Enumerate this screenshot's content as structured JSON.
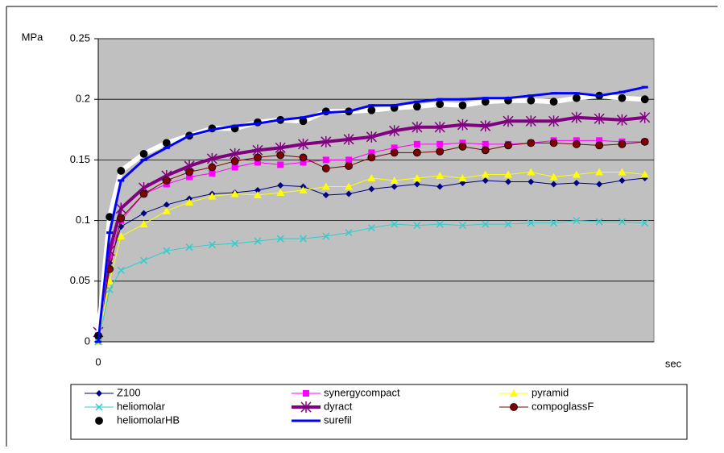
{
  "chart_data": {
    "type": "line",
    "y_label": "MPa",
    "x_label": "sec",
    "x": [
      0,
      5,
      10,
      20,
      30,
      40,
      50,
      60,
      70,
      80,
      90,
      100,
      110,
      120,
      130,
      140,
      150,
      160,
      170,
      180,
      190,
      200,
      210,
      220,
      230,
      240
    ],
    "xlim": [
      0,
      244
    ],
    "xticks": [
      0
    ],
    "ylim": [
      0,
      0.25
    ],
    "yticks": [
      0,
      0.05,
      0.1,
      0.15,
      0.2,
      0.25
    ],
    "grid": true,
    "background": "#c0c0c0",
    "series": [
      {
        "name": "Z100",
        "color": "#000080",
        "marker": "diamond",
        "line_width": 1,
        "values": [
          0,
          0.065,
          0.095,
          0.106,
          0.113,
          0.118,
          0.122,
          0.123,
          0.125,
          0.129,
          0.128,
          0.121,
          0.122,
          0.126,
          0.128,
          0.13,
          0.128,
          0.131,
          0.133,
          0.132,
          0.132,
          0.13,
          0.131,
          0.13,
          0.133,
          0.135
        ]
      },
      {
        "name": "synergycompact",
        "color": "#ff00ff",
        "marker": "square",
        "line_width": 1,
        "values": [
          0.005,
          0.07,
          0.1,
          0.122,
          0.13,
          0.136,
          0.139,
          0.144,
          0.148,
          0.146,
          0.148,
          0.15,
          0.15,
          0.156,
          0.16,
          0.163,
          0.163,
          0.164,
          0.163,
          0.163,
          0.164,
          0.166,
          0.166,
          0.166,
          0.165,
          0.165
        ]
      },
      {
        "name": "pyramid",
        "color": "#ffff00",
        "marker": "triangle",
        "line_width": 1,
        "values": [
          0,
          0.05,
          0.087,
          0.097,
          0.108,
          0.115,
          0.12,
          0.122,
          0.121,
          0.123,
          0.125,
          0.128,
          0.128,
          0.135,
          0.133,
          0.135,
          0.137,
          0.135,
          0.138,
          0.138,
          0.14,
          0.136,
          0.138,
          0.14,
          0.14,
          0.138
        ]
      },
      {
        "name": "heliomolar",
        "color": "#33cccc",
        "marker": "x",
        "line_width": 1,
        "values": [
          0,
          0.043,
          0.059,
          0.067,
          0.075,
          0.078,
          0.08,
          0.081,
          0.083,
          0.085,
          0.085,
          0.087,
          0.09,
          0.094,
          0.097,
          0.096,
          0.097,
          0.096,
          0.097,
          0.097,
          0.098,
          0.098,
          0.1,
          0.099,
          0.099,
          0.098
        ]
      },
      {
        "name": "dyract",
        "color": "#800080",
        "marker": "star",
        "line_width": 4,
        "values": [
          0.008,
          0.075,
          0.11,
          0.127,
          0.137,
          0.145,
          0.151,
          0.155,
          0.158,
          0.16,
          0.163,
          0.165,
          0.167,
          0.169,
          0.174,
          0.177,
          0.177,
          0.179,
          0.178,
          0.182,
          0.182,
          0.182,
          0.185,
          0.184,
          0.183,
          0.185
        ]
      },
      {
        "name": "compoglassF",
        "color": "#800000",
        "marker": "circle",
        "line_width": 1,
        "values": [
          0.005,
          0.06,
          0.102,
          0.122,
          0.133,
          0.14,
          0.144,
          0.149,
          0.152,
          0.154,
          0.152,
          0.143,
          0.145,
          0.152,
          0.156,
          0.156,
          0.157,
          0.161,
          0.158,
          0.162,
          0.164,
          0.164,
          0.163,
          0.162,
          0.163,
          0.165
        ]
      },
      {
        "name": "heliomolarHB",
        "color": "#ffffff",
        "marker_color": "#000000",
        "marker": "circle",
        "line_width": 6,
        "values": [
          0.005,
          0.103,
          0.141,
          0.155,
          0.164,
          0.17,
          0.176,
          0.176,
          0.181,
          0.183,
          0.182,
          0.19,
          0.19,
          0.191,
          0.193,
          0.194,
          0.196,
          0.195,
          0.198,
          0.199,
          0.199,
          0.198,
          0.201,
          0.203,
          0.201,
          0.2
        ]
      },
      {
        "name": "surefil",
        "color": "#0000ff",
        "marker": "dash",
        "line_width": 3,
        "values": [
          0,
          0.09,
          0.133,
          0.15,
          0.16,
          0.17,
          0.175,
          0.178,
          0.18,
          0.183,
          0.185,
          0.189,
          0.19,
          0.195,
          0.195,
          0.198,
          0.2,
          0.2,
          0.201,
          0.201,
          0.203,
          0.205,
          0.205,
          0.203,
          0.206,
          0.21
        ]
      }
    ]
  }
}
